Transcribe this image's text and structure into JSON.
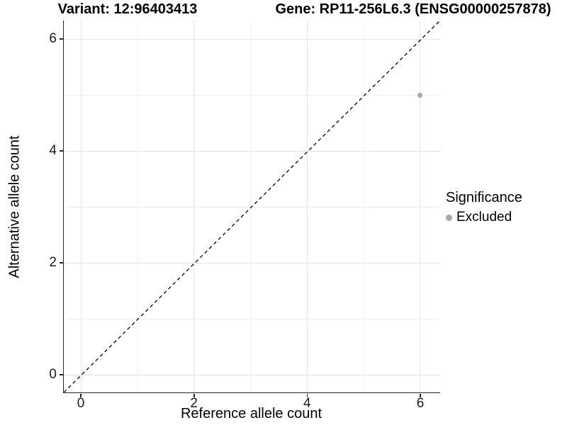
{
  "chart_data": {
    "type": "scatter",
    "title_left": "Variant: 12:96403413",
    "title_right": "Gene: RP11-256L6.3 (ENSG00000257878)",
    "xlabel": "Reference allele count",
    "ylabel": "Alternative allele count",
    "xlim": [
      -0.3,
      6.3
    ],
    "ylim": [
      -0.3,
      6.3
    ],
    "x_tick_labels": [
      "0",
      "2",
      "4",
      "6"
    ],
    "y_tick_labels": [
      "0",
      "2",
      "4",
      "6"
    ],
    "x_tick_values": [
      0,
      2,
      4,
      6
    ],
    "y_tick_values": [
      0,
      2,
      4,
      6
    ],
    "minor_tick_values": [
      1,
      3,
      5
    ],
    "grid": "major and minor gridlines, light gray on white",
    "series": [
      {
        "name": "Excluded",
        "color": "#a9a9a9",
        "points": [
          {
            "x": 6,
            "y": 5
          }
        ]
      }
    ],
    "identity_line": {
      "slope": 1,
      "intercept": 0,
      "style": "dashed",
      "color": "#000000"
    },
    "legend": {
      "title": "Significance",
      "position": "right",
      "entries": [
        {
          "label": "Excluded",
          "color": "#a9a9a9",
          "marker": "circle"
        }
      ]
    },
    "colors": {
      "background": "#ffffff",
      "grid_major": "#e4e4e4",
      "grid_minor": "#f1f1f1",
      "axis_line": "#262626",
      "point": "#a9a9a9",
      "text": "#000000"
    }
  }
}
